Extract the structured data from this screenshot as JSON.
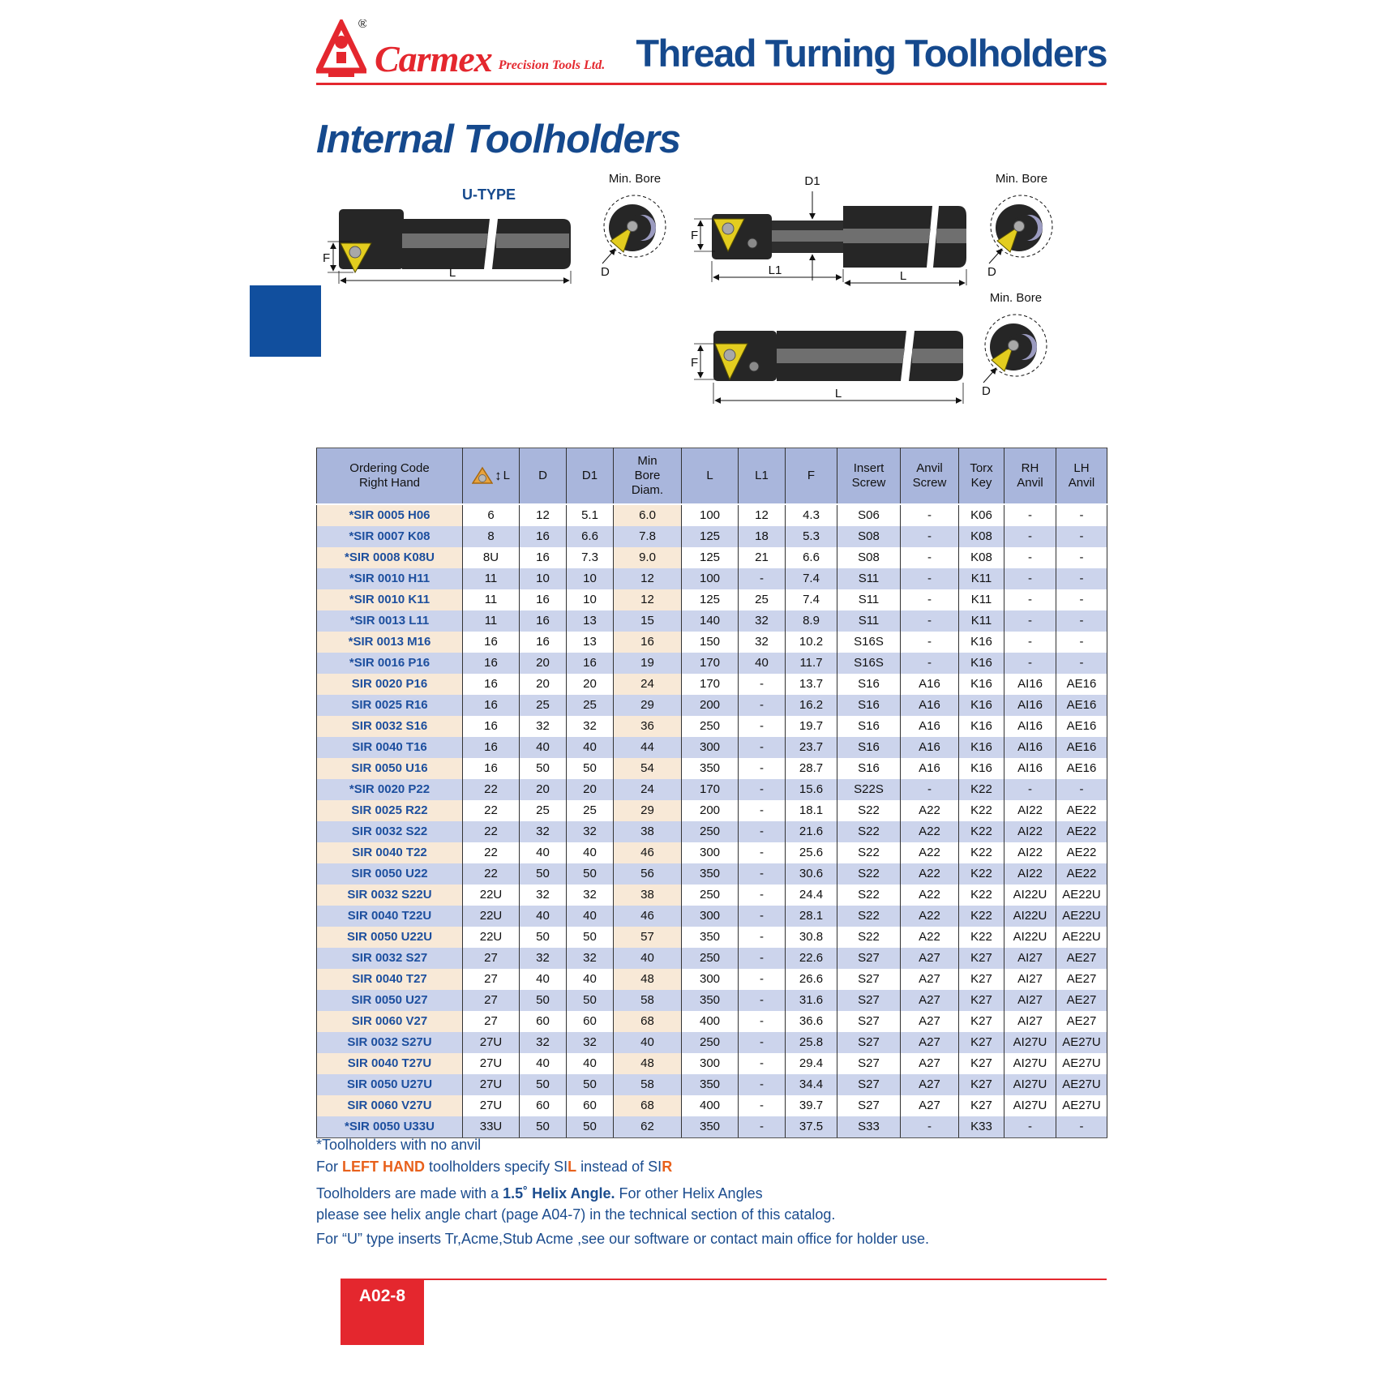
{
  "header": {
    "brand_name": "Carmex",
    "brand_tagline": "Precision Tools Ltd.",
    "title": "Thread Turning Toolholders"
  },
  "section": {
    "title": "Internal Toolholders"
  },
  "diagrams": {
    "u_type_label": "U-TYPE",
    "min_bore_label": "Min. Bore",
    "dim_f": "F",
    "dim_l": "L",
    "dim_l1": "L1",
    "dim_d": "D",
    "dim_d1": "D1"
  },
  "icons": {
    "insert_icon": "threading-insert-icon",
    "logo_icon": "carmex-triangle-logo"
  },
  "colors": {
    "accent_red": "#e4272e",
    "heading_blue": "#15498d",
    "table_header_bg": "#a9b6dc",
    "row_lavender": "#ccd4ec",
    "row_cream": "#f8e9d7",
    "code_blue": "#1d4f9e",
    "note_orange": "#e8611c"
  },
  "table": {
    "headers": [
      "Ordering Code\nRight Hand",
      "L",
      "D",
      "D1",
      "Min\nBore\nDiam.",
      "L",
      "L1",
      "F",
      "Insert\nScrew",
      "Anvil\nScrew",
      "Torx\nKey",
      "RH\nAnvil",
      "LH\nAnvil"
    ],
    "rows": [
      [
        "*SIR 0005 H06",
        "6",
        "12",
        "5.1",
        "6.0",
        "100",
        "12",
        "4.3",
        "S06",
        "-",
        "K06",
        "-",
        "-"
      ],
      [
        "*SIR 0007 K08",
        "8",
        "16",
        "6.6",
        "7.8",
        "125",
        "18",
        "5.3",
        "S08",
        "-",
        "K08",
        "-",
        "-"
      ],
      [
        "*SIR 0008 K08U",
        "8U",
        "16",
        "7.3",
        "9.0",
        "125",
        "21",
        "6.6",
        "S08",
        "-",
        "K08",
        "-",
        "-"
      ],
      [
        "*SIR 0010 H11",
        "11",
        "10",
        "10",
        "12",
        "100",
        "-",
        "7.4",
        "S11",
        "-",
        "K11",
        "-",
        "-"
      ],
      [
        "*SIR 0010 K11",
        "11",
        "16",
        "10",
        "12",
        "125",
        "25",
        "7.4",
        "S11",
        "-",
        "K11",
        "-",
        "-"
      ],
      [
        "*SIR 0013 L11",
        "11",
        "16",
        "13",
        "15",
        "140",
        "32",
        "8.9",
        "S11",
        "-",
        "K11",
        "-",
        "-"
      ],
      [
        "*SIR 0013 M16",
        "16",
        "16",
        "13",
        "16",
        "150",
        "32",
        "10.2",
        "S16S",
        "-",
        "K16",
        "-",
        "-"
      ],
      [
        "*SIR 0016 P16",
        "16",
        "20",
        "16",
        "19",
        "170",
        "40",
        "11.7",
        "S16S",
        "-",
        "K16",
        "-",
        "-"
      ],
      [
        "SIR 0020 P16",
        "16",
        "20",
        "20",
        "24",
        "170",
        "-",
        "13.7",
        "S16",
        "A16",
        "K16",
        "AI16",
        "AE16"
      ],
      [
        "SIR 0025 R16",
        "16",
        "25",
        "25",
        "29",
        "200",
        "-",
        "16.2",
        "S16",
        "A16",
        "K16",
        "AI16",
        "AE16"
      ],
      [
        "SIR 0032 S16",
        "16",
        "32",
        "32",
        "36",
        "250",
        "-",
        "19.7",
        "S16",
        "A16",
        "K16",
        "AI16",
        "AE16"
      ],
      [
        "SIR 0040 T16",
        "16",
        "40",
        "40",
        "44",
        "300",
        "-",
        "23.7",
        "S16",
        "A16",
        "K16",
        "AI16",
        "AE16"
      ],
      [
        "SIR 0050 U16",
        "16",
        "50",
        "50",
        "54",
        "350",
        "-",
        "28.7",
        "S16",
        "A16",
        "K16",
        "AI16",
        "AE16"
      ],
      [
        "*SIR 0020 P22",
        "22",
        "20",
        "20",
        "24",
        "170",
        "-",
        "15.6",
        "S22S",
        "-",
        "K22",
        "-",
        "-"
      ],
      [
        "SIR 0025 R22",
        "22",
        "25",
        "25",
        "29",
        "200",
        "-",
        "18.1",
        "S22",
        "A22",
        "K22",
        "AI22",
        "AE22"
      ],
      [
        "SIR 0032 S22",
        "22",
        "32",
        "32",
        "38",
        "250",
        "-",
        "21.6",
        "S22",
        "A22",
        "K22",
        "AI22",
        "AE22"
      ],
      [
        "SIR 0040 T22",
        "22",
        "40",
        "40",
        "46",
        "300",
        "-",
        "25.6",
        "S22",
        "A22",
        "K22",
        "AI22",
        "AE22"
      ],
      [
        "SIR 0050 U22",
        "22",
        "50",
        "50",
        "56",
        "350",
        "-",
        "30.6",
        "S22",
        "A22",
        "K22",
        "AI22",
        "AE22"
      ],
      [
        "SIR 0032 S22U",
        "22U",
        "32",
        "32",
        "38",
        "250",
        "-",
        "24.4",
        "S22",
        "A22",
        "K22",
        "AI22U",
        "AE22U"
      ],
      [
        "SIR 0040 T22U",
        "22U",
        "40",
        "40",
        "46",
        "300",
        "-",
        "28.1",
        "S22",
        "A22",
        "K22",
        "AI22U",
        "AE22U"
      ],
      [
        "SIR 0050 U22U",
        "22U",
        "50",
        "50",
        "57",
        "350",
        "-",
        "30.8",
        "S22",
        "A22",
        "K22",
        "AI22U",
        "AE22U"
      ],
      [
        "SIR 0032 S27",
        "27",
        "32",
        "32",
        "40",
        "250",
        "-",
        "22.6",
        "S27",
        "A27",
        "K27",
        "AI27",
        "AE27"
      ],
      [
        "SIR 0040 T27",
        "27",
        "40",
        "40",
        "48",
        "300",
        "-",
        "26.6",
        "S27",
        "A27",
        "K27",
        "AI27",
        "AE27"
      ],
      [
        "SIR 0050 U27",
        "27",
        "50",
        "50",
        "58",
        "350",
        "-",
        "31.6",
        "S27",
        "A27",
        "K27",
        "AI27",
        "AE27"
      ],
      [
        "SIR 0060 V27",
        "27",
        "60",
        "60",
        "68",
        "400",
        "-",
        "36.6",
        "S27",
        "A27",
        "K27",
        "AI27",
        "AE27"
      ],
      [
        "SIR 0032 S27U",
        "27U",
        "32",
        "32",
        "40",
        "250",
        "-",
        "25.8",
        "S27",
        "A27",
        "K27",
        "AI27U",
        "AE27U"
      ],
      [
        "SIR 0040 T27U",
        "27U",
        "40",
        "40",
        "48",
        "300",
        "-",
        "29.4",
        "S27",
        "A27",
        "K27",
        "AI27U",
        "AE27U"
      ],
      [
        "SIR 0050 U27U",
        "27U",
        "50",
        "50",
        "58",
        "350",
        "-",
        "34.4",
        "S27",
        "A27",
        "K27",
        "AI27U",
        "AE27U"
      ],
      [
        "SIR 0060 V27U",
        "27U",
        "60",
        "60",
        "68",
        "400",
        "-",
        "39.7",
        "S27",
        "A27",
        "K27",
        "AI27U",
        "AE27U"
      ],
      [
        "*SIR 0050 U33U",
        "33U",
        "50",
        "50",
        "62",
        "350",
        "-",
        "37.5",
        "S33",
        "-",
        "K33",
        "-",
        "-"
      ]
    ]
  },
  "notes": {
    "no_anvil": "*Toolholders with no anvil",
    "left_hand": {
      "pre": "For ",
      "highlight": "LEFT HAND",
      "mid": " toolholders specify SI",
      "l": "L",
      "mid2": " instead of SI",
      "r": "R"
    },
    "helix": {
      "pre": "Toolholders are made with a ",
      "bold": "1.5˚ Helix Angle.",
      "post": " For other Helix Angles",
      "line2": "please see helix angle chart (page A04-7) in the technical section of this catalog."
    },
    "u_type": "For “U” type inserts  Tr,Acme,Stub Acme ,see our software or contact main office for holder use."
  },
  "footer": {
    "page_number": "A02-8"
  }
}
